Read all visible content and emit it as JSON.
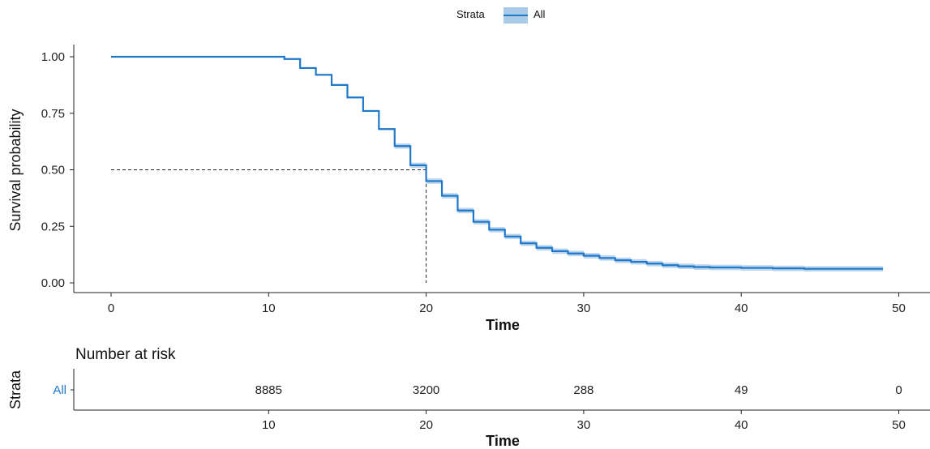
{
  "legend": {
    "title": "Strata",
    "entry": "All"
  },
  "colors": {
    "curve": "#1f78c8",
    "band": "#a9cbe8",
    "text": "#222222",
    "axis": "#222222"
  },
  "chart_data": {
    "type": "line",
    "subtype": "kaplan-meier step",
    "xlabel": "Time",
    "ylabel": "Survival probability",
    "xlim": [
      -2,
      52
    ],
    "ylim": [
      0,
      1
    ],
    "x_ticks": [
      "0",
      "10",
      "20",
      "30",
      "40",
      "50"
    ],
    "y_ticks": [
      "0.00",
      "0.25",
      "0.50",
      "0.75",
      "1.00"
    ],
    "median_line": {
      "x": 20,
      "y": 0.5,
      "style": "dashed"
    },
    "confidence_band": true,
    "grid": false,
    "legend_position": "top",
    "series": [
      {
        "name": "All",
        "steps": [
          [
            0,
            1.0
          ],
          [
            11,
            0.99
          ],
          [
            12,
            0.95
          ],
          [
            13,
            0.92
          ],
          [
            14,
            0.875
          ],
          [
            15,
            0.82
          ],
          [
            16,
            0.76
          ],
          [
            17,
            0.68
          ],
          [
            18,
            0.605
          ],
          [
            19,
            0.52
          ],
          [
            20,
            0.45
          ],
          [
            21,
            0.385
          ],
          [
            22,
            0.32
          ],
          [
            23,
            0.27
          ],
          [
            24,
            0.235
          ],
          [
            25,
            0.205
          ],
          [
            26,
            0.175
          ],
          [
            27,
            0.155
          ],
          [
            28,
            0.14
          ],
          [
            29,
            0.13
          ],
          [
            30,
            0.12
          ],
          [
            31,
            0.11
          ],
          [
            32,
            0.1
          ],
          [
            33,
            0.093
          ],
          [
            34,
            0.085
          ],
          [
            35,
            0.078
          ],
          [
            36,
            0.073
          ],
          [
            37,
            0.07
          ],
          [
            38,
            0.068
          ],
          [
            40,
            0.066
          ],
          [
            42,
            0.064
          ],
          [
            44,
            0.062
          ],
          [
            49,
            0.062
          ]
        ]
      }
    ]
  },
  "risk_table": {
    "title": "Number at risk",
    "ylabel": "Strata",
    "strata_label": "All",
    "xlabel": "Time",
    "x_ticks": [
      "10",
      "20",
      "30",
      "40",
      "50"
    ],
    "columns": [
      {
        "time": 10,
        "value": "8885"
      },
      {
        "time": 20,
        "value": "3200"
      },
      {
        "time": 30,
        "value": "288"
      },
      {
        "time": 40,
        "value": "49"
      },
      {
        "time": 50,
        "value": "0"
      }
    ]
  }
}
